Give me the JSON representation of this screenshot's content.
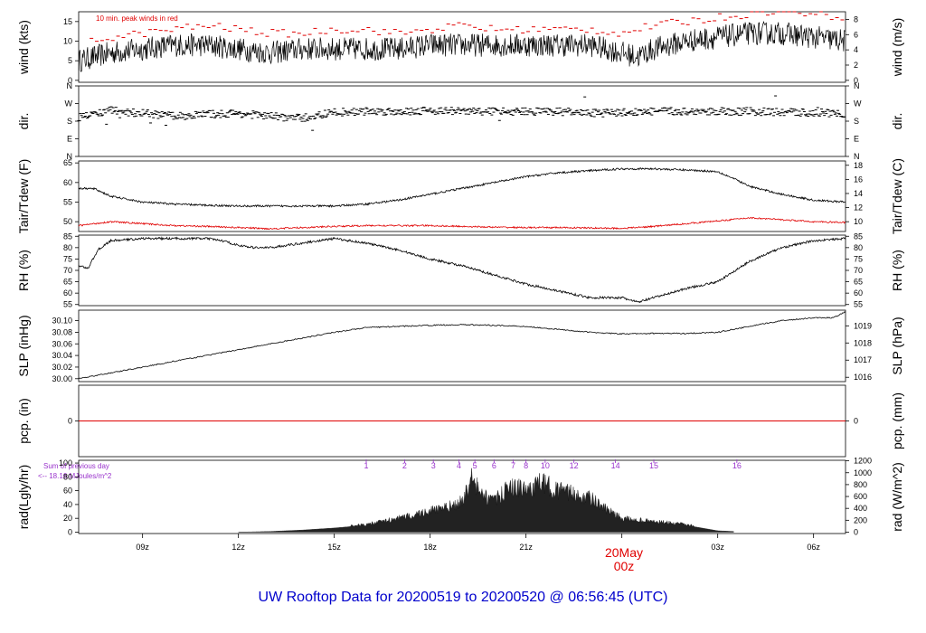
{
  "title": "UW Rooftop Data for 20200519  to  20200520 @ 06:56:45  (UTC)",
  "colors": {
    "title": "#0000cc",
    "peak": "#e00000",
    "dew": "#e00000",
    "precip": "#e00000",
    "solar_annotation": "#9932cc",
    "date_marker": "#e00000",
    "line": "#000000"
  },
  "x_axis": {
    "labels": [
      "09z",
      "12z",
      "15z",
      "18z",
      "21z",
      "03z",
      "06z"
    ],
    "date_marker": [
      "20May",
      "00z"
    ]
  },
  "wind_note": "10 min. peak winds in red",
  "solar_note": [
    "Sum of previous day",
    "<-- 18.16 MJoules/m^2"
  ],
  "solar_hours": [
    "1",
    "2",
    "3",
    "4",
    "5",
    "6",
    "7",
    "8",
    "10",
    "12",
    "14",
    "15",
    "16"
  ],
  "panels": {
    "wind": {
      "left_label": "wind (kts)",
      "right_label": "wind (m/s)",
      "left_ticks": [
        "0",
        "5",
        "10",
        "15"
      ],
      "right_ticks": [
        "0",
        "2",
        "4",
        "6",
        "8"
      ]
    },
    "dir": {
      "left_label": "dir.",
      "right_label": "dir.",
      "left_ticks": [
        "N",
        "W",
        "S",
        "E",
        "N"
      ],
      "right_ticks": [
        "N",
        "W",
        "S",
        "E",
        "N"
      ]
    },
    "temp": {
      "left_label": "Tair/Tdew (F)",
      "right_label": "Tair/Tdew (C)",
      "left_ticks": [
        "50",
        "55",
        "60",
        "65"
      ],
      "right_ticks": [
        "10",
        "12",
        "14",
        "16",
        "18"
      ]
    },
    "rh": {
      "left_label": "RH (%)",
      "right_label": "RH (%)",
      "left_ticks": [
        "55",
        "60",
        "65",
        "70",
        "75",
        "80",
        "85"
      ],
      "right_ticks": [
        "55",
        "60",
        "65",
        "70",
        "75",
        "80",
        "85"
      ]
    },
    "slp": {
      "left_label": "SLP (inHg)",
      "right_label": "SLP (hPa)",
      "left_ticks": [
        "30.00",
        "30.02",
        "30.04",
        "30.06",
        "30.08",
        "30.10"
      ],
      "right_ticks": [
        "1016",
        "1017",
        "1018",
        "1019"
      ]
    },
    "pcp": {
      "left_label": "pcp. (in)",
      "right_label": "pcp. (mm)",
      "left_ticks": [
        "0"
      ],
      "right_ticks": [
        "0"
      ]
    },
    "rad": {
      "left_label": "rad(Lgly/hr)",
      "right_label": "rad (W/m^2)",
      "left_ticks": [
        "0",
        "20",
        "40",
        "60",
        "80",
        "100"
      ],
      "right_ticks": [
        "0",
        "200",
        "400",
        "600",
        "800",
        "1000",
        "1200"
      ]
    }
  },
  "chart_data": {
    "type": "line",
    "x_range_hours_utc": [
      7.0,
      31.0
    ],
    "x_ticks_hours_utc": [
      9,
      12,
      15,
      18,
      21,
      24,
      27,
      30
    ],
    "series": [
      {
        "name": "wind",
        "units": "kts",
        "x": [
          7.0,
          7.5,
          8.0,
          9.0,
          10.0,
          11.0,
          12.0,
          13.0,
          14.0,
          15.0,
          16.0,
          17.0,
          18.0,
          19.0,
          20.0,
          21.0,
          22.0,
          23.0,
          23.5,
          24.0,
          24.5,
          25.0,
          26.0,
          27.0,
          28.0,
          29.0,
          30.0,
          31.0
        ],
        "values": [
          5,
          6,
          7,
          8,
          9,
          9,
          8,
          7,
          8,
          8,
          8,
          8,
          9,
          9,
          9,
          9,
          9,
          9,
          8,
          7,
          6,
          8,
          10,
          11,
          12,
          12,
          11,
          10
        ]
      },
      {
        "name": "10 min. peak winds",
        "units": "kts",
        "x": [
          7.5,
          8.0,
          9.0,
          10.0,
          11.0,
          12.0,
          13.0,
          14.0,
          15.0,
          16.0,
          17.0,
          18.0,
          19.0,
          20.0,
          21.0,
          22.0,
          23.0,
          24.0,
          25.0,
          26.0,
          27.0,
          28.0,
          29.0,
          30.0,
          31.0
        ],
        "values": [
          10,
          11,
          12,
          13,
          14,
          13,
          12,
          12,
          13,
          13,
          12,
          13,
          14,
          13,
          13,
          13,
          13,
          12,
          14,
          15,
          16,
          17,
          18,
          17,
          16
        ]
      },
      {
        "name": "dir",
        "units": "deg",
        "x": [
          7.0,
          8.0,
          9.0,
          10.0,
          11.0,
          12.0,
          13.0,
          14.0,
          15.0,
          16.0,
          17.0,
          18.0,
          19.0,
          20.0,
          21.0,
          22.0,
          23.0,
          24.0,
          25.0,
          26.0,
          27.0,
          28.0,
          29.0,
          30.0,
          31.0
        ],
        "values": [
          200,
          235,
          220,
          205,
          215,
          220,
          205,
          195,
          225,
          230,
          230,
          235,
          230,
          230,
          230,
          230,
          220,
          225,
          230,
          230,
          230,
          230,
          225,
          225,
          220
        ]
      },
      {
        "name": "Tair",
        "units": "F",
        "x": [
          7.0,
          7.5,
          8.0,
          9.0,
          10.0,
          11.0,
          12.0,
          13.0,
          14.0,
          15.0,
          16.0,
          17.0,
          18.0,
          19.0,
          20.0,
          21.0,
          22.0,
          23.0,
          24.0,
          25.0,
          26.0,
          27.0,
          27.5,
          28.0,
          29.0,
          30.0,
          31.0
        ],
        "values": [
          58.5,
          58.4,
          56.5,
          55.0,
          54.5,
          54.2,
          54.0,
          54.0,
          54.0,
          54.0,
          54.5,
          55.5,
          57.0,
          58.5,
          60.0,
          61.5,
          62.5,
          63.0,
          63.5,
          63.5,
          63.2,
          62.8,
          61.0,
          59.0,
          57.0,
          55.5,
          55.0
        ]
      },
      {
        "name": "Tdew",
        "units": "F",
        "x": [
          7.0,
          8.0,
          9.0,
          10.0,
          11.0,
          12.0,
          13.0,
          14.0,
          15.0,
          16.0,
          17.0,
          18.0,
          19.0,
          20.0,
          21.0,
          22.0,
          23.0,
          24.0,
          25.0,
          26.0,
          27.0,
          28.0,
          29.0,
          30.0,
          31.0
        ],
        "values": [
          49.0,
          50.0,
          49.5,
          49.0,
          48.8,
          48.5,
          48.2,
          48.5,
          48.8,
          49.0,
          49.0,
          49.0,
          48.8,
          48.6,
          48.5,
          48.5,
          48.4,
          48.3,
          48.8,
          49.5,
          50.2,
          51.0,
          50.5,
          50.0,
          49.8
        ]
      },
      {
        "name": "RH",
        "units": "%",
        "x": [
          7.0,
          7.3,
          7.6,
          8.0,
          9.0,
          10.0,
          11.0,
          11.5,
          12.0,
          12.5,
          13.0,
          14.0,
          15.0,
          16.0,
          17.0,
          18.0,
          19.0,
          20.0,
          21.0,
          22.0,
          23.0,
          24.0,
          24.5,
          25.0,
          26.0,
          27.0,
          28.0,
          29.0,
          30.0,
          31.0
        ],
        "values": [
          72,
          71,
          79,
          83,
          84,
          84,
          84,
          83,
          81,
          80,
          80,
          82,
          84,
          82,
          79,
          75,
          72,
          68,
          64,
          61,
          58,
          58,
          56,
          58,
          62,
          65,
          74,
          80,
          83,
          84
        ]
      },
      {
        "name": "SLP",
        "units": "inHg",
        "x": [
          7.0,
          8.0,
          9.0,
          10.0,
          11.0,
          12.0,
          13.0,
          14.0,
          15.0,
          16.0,
          17.0,
          18.0,
          19.0,
          20.0,
          21.0,
          22.0,
          23.0,
          24.0,
          25.0,
          26.0,
          27.0,
          28.0,
          29.0,
          30.0,
          30.6,
          31.0
        ],
        "values": [
          30.0,
          30.01,
          30.02,
          30.03,
          30.04,
          30.05,
          30.06,
          30.07,
          30.08,
          30.088,
          30.09,
          30.092,
          30.093,
          30.092,
          30.09,
          30.085,
          30.08,
          30.077,
          30.078,
          30.078,
          30.08,
          30.09,
          30.1,
          30.105,
          30.105,
          30.115
        ]
      },
      {
        "name": "pcp",
        "units": "in",
        "x": [
          7.0,
          31.0
        ],
        "values": [
          0,
          0
        ]
      },
      {
        "name": "rad",
        "units": "Lgly/hr",
        "x": [
          12.0,
          13.0,
          14.0,
          15.0,
          16.0,
          17.0,
          18.0,
          18.5,
          19.0,
          19.3,
          19.6,
          20.0,
          20.5,
          21.0,
          21.5,
          22.0,
          22.5,
          23.0,
          23.5,
          24.0,
          25.0,
          26.0,
          27.0,
          28.0,
          29.0,
          31.0
        ],
        "values": [
          0,
          1,
          3,
          6,
          10,
          18,
          28,
          32,
          40,
          70,
          50,
          40,
          60,
          55,
          65,
          55,
          50,
          45,
          30,
          18,
          14,
          10,
          2,
          0,
          0,
          0
        ]
      }
    ]
  }
}
